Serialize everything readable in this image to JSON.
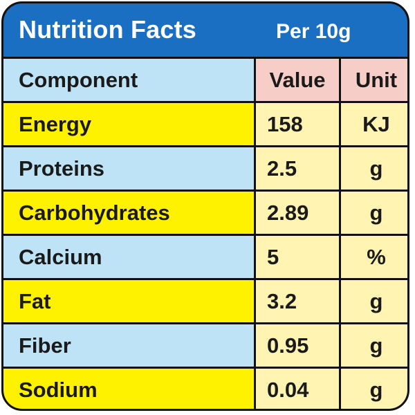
{
  "header": {
    "title": "Nutrition Facts",
    "serving": "Per 10g"
  },
  "columns": {
    "component": "Component",
    "value": "Value",
    "unit": "Unit"
  },
  "rows": [
    {
      "component": "Energy",
      "value": "158",
      "unit": "KJ",
      "band": "yellow"
    },
    {
      "component": "Proteins",
      "value": "2.5",
      "unit": "g",
      "band": "blue"
    },
    {
      "component": "Carbohydrates",
      "value": "2.89",
      "unit": "g",
      "band": "yellow"
    },
    {
      "component": "Calcium",
      "value": "5",
      "unit": "%",
      "band": "blue"
    },
    {
      "component": "Fat",
      "value": "3.2",
      "unit": "g",
      "band": "yellow"
    },
    {
      "component": "Fiber",
      "value": "0.95",
      "unit": "g",
      "band": "blue"
    },
    {
      "component": "Sodium",
      "value": "0.04",
      "unit": "g",
      "band": "yellow"
    }
  ],
  "colors": {
    "header_blue": "#1b6fc2",
    "row_yellow": "#fff200",
    "row_blue": "#bfe3f6",
    "value_cream": "#fff4b2",
    "header_pink": "#f7cec7",
    "border": "#111111"
  }
}
